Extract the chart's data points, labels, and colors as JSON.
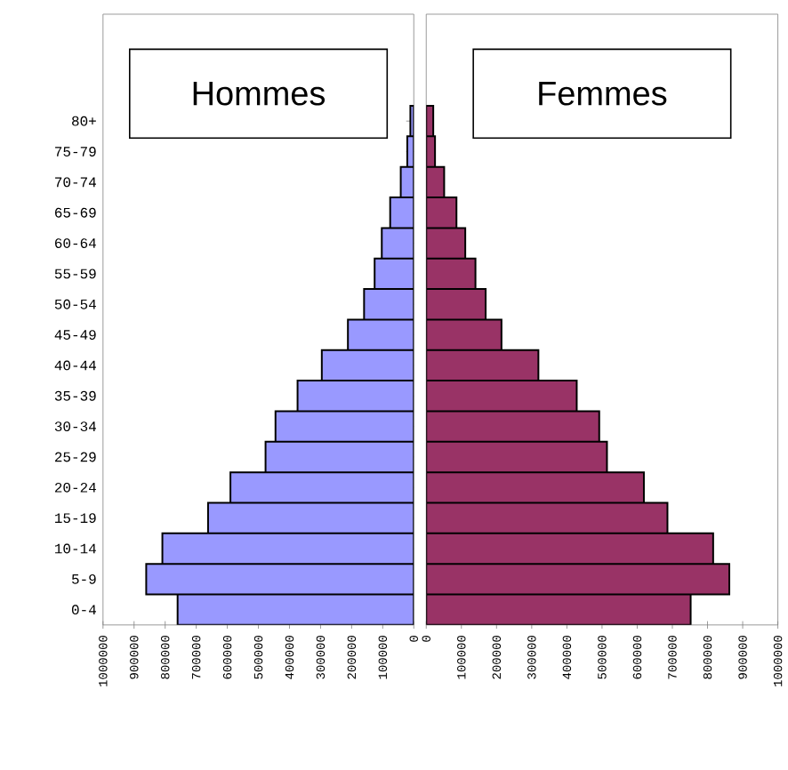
{
  "chart_data": [
    {
      "type": "bar",
      "orientation": "horizontal",
      "title": "Hommes",
      "color": "#9999ff",
      "categories": [
        "80+",
        "75-79",
        "70-74",
        "65-69",
        "60-64",
        "55-59",
        "50-54",
        "45-49",
        "40-44",
        "35-39",
        "30-34",
        "25-29",
        "20-24",
        "15-19",
        "10-14",
        "5-9",
        "0-4"
      ],
      "values": [
        11000,
        21000,
        42000,
        76000,
        103000,
        126000,
        160000,
        212000,
        296000,
        374000,
        445000,
        477000,
        590000,
        662000,
        809000,
        861000,
        760000
      ],
      "xlim": [
        1000000,
        0
      ],
      "xticks": [
        1000000,
        900000,
        800000,
        700000,
        600000,
        500000,
        400000,
        300000,
        200000,
        100000,
        0
      ]
    },
    {
      "type": "bar",
      "orientation": "horizontal",
      "title": "Femmes",
      "color": "#993366",
      "categories": [
        null,
        null,
        null,
        null,
        null,
        null,
        null,
        null,
        null,
        null,
        null,
        null,
        null,
        null,
        null,
        null,
        null
      ],
      "values": [
        20000,
        25000,
        51000,
        86000,
        111000,
        140000,
        169000,
        214000,
        319000,
        428000,
        492000,
        514000,
        619000,
        686000,
        816000,
        862000,
        752000
      ],
      "xlim": [
        0,
        1000000
      ],
      "xticks": [
        0,
        100000,
        200000,
        300000,
        400000,
        500000,
        600000,
        700000,
        800000,
        900000,
        1000000
      ],
      "tick_labels": "x"
    }
  ]
}
